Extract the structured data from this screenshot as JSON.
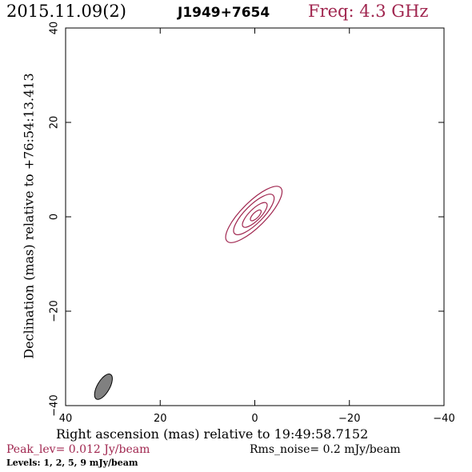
{
  "header": {
    "date": "2015.11.09(2)",
    "source": "J1949+7654",
    "freq": "Freq: 4.3 GHz"
  },
  "footer": {
    "peak": "Peak_lev=  0.012 Jy/beam",
    "rms": "Rms_noise=   0.2 mJy/beam",
    "levels": "Levels:    1,    2,    5,    9 mJy/beam"
  },
  "colors": {
    "accent": "#a0264f",
    "beam_fill": "#808080"
  },
  "chart_data": {
    "type": "contour",
    "xlabel": "Right ascension (mas) relative to 19:49:58.7152",
    "ylabel": "Declination (mas) relative to +76:54:13.413",
    "xlim": [
      40,
      -40
    ],
    "ylim": [
      -40,
      40
    ],
    "xticks": [
      40,
      20,
      0,
      -20,
      -40
    ],
    "yticks": [
      -40,
      -20,
      0,
      20,
      40
    ],
    "xtick_labels": [
      "40",
      "20",
      "0",
      "−20",
      "−40"
    ],
    "ytick_labels": [
      "−40",
      "−20",
      "0",
      "20",
      "40"
    ],
    "grid": false,
    "contours": [
      {
        "level": 1,
        "center": [
          0.2,
          0.5
        ],
        "major": 16.0,
        "minor": 5.2,
        "pa": 45
      },
      {
        "level": 2,
        "center": [
          0.2,
          0.5
        ],
        "major": 11.5,
        "minor": 3.8,
        "pa": 45
      },
      {
        "level": 5,
        "center": [
          0.0,
          0.4
        ],
        "major": 7.0,
        "minor": 2.4,
        "pa": 45
      },
      {
        "level": 9,
        "center": [
          -0.2,
          0.3
        ],
        "major": 3.0,
        "minor": 1.2,
        "pa": 45
      }
    ],
    "beam": {
      "center": [
        32,
        -36
      ],
      "major": 6.0,
      "minor": 2.6,
      "pa": 30
    }
  }
}
